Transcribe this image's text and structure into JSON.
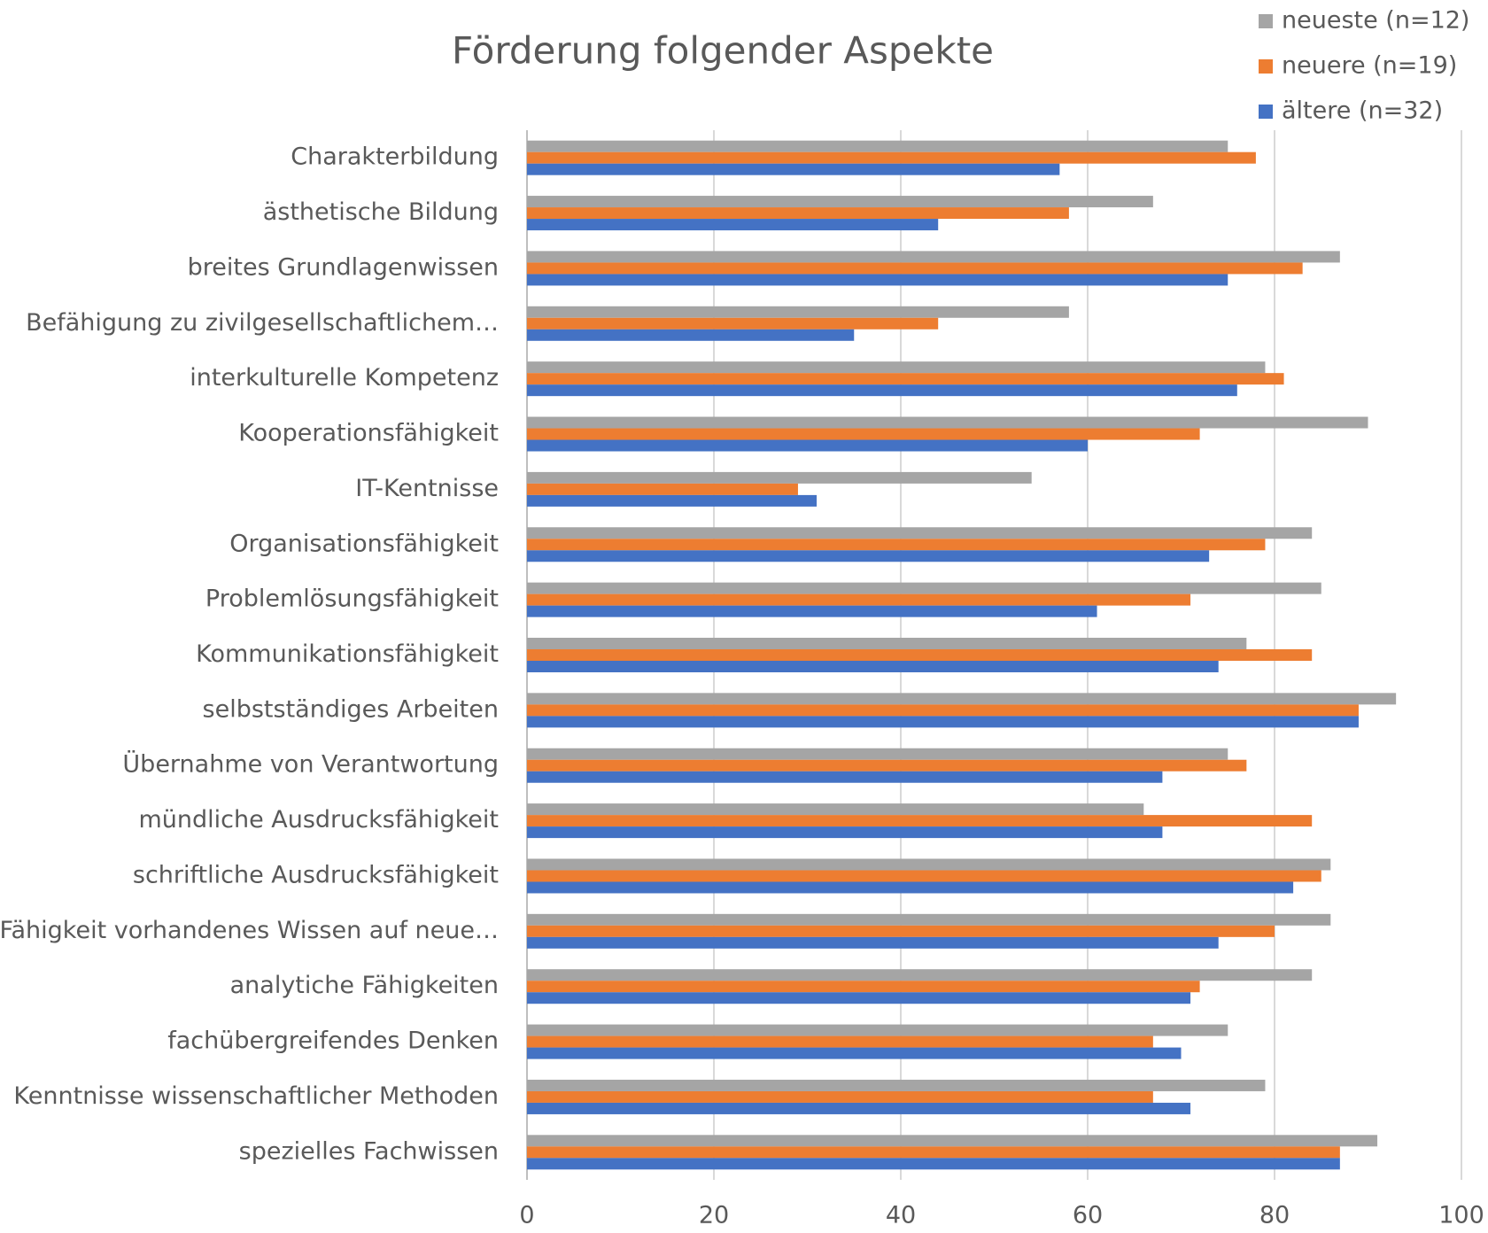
{
  "chart_data": {
    "type": "bar",
    "orientation": "horizontal",
    "title": "Förderung folgender Aspekte",
    "categories": [
      "Charakterbildung",
      "ästhetische Bildung",
      "breites Grundlagenwissen",
      "Befähigung zu zivilgesellschaftlichem…",
      "interkulturelle Kompetenz",
      "Kooperationsfähigkeit",
      "IT-Kentnisse",
      "Organisationsfähigkeit",
      "Problemlösungsfähigkeit",
      "Kommunikationsfähigkeit",
      "selbstständiges Arbeiten",
      "Übernahme von Verantwortung",
      "mündliche Ausdrucksfähigkeit",
      "schriftliche Ausdrucksfähigkeit",
      "Fähigkeit vorhandenes Wissen auf neue…",
      "analytiche Fähigkeiten",
      "fachübergreifendes Denken",
      "Kenntnisse wissenschaftlicher Methoden",
      "spezielles Fachwissen"
    ],
    "series": [
      {
        "name": "neueste (n=12)",
        "color": "#a5a5a5",
        "values": [
          75,
          67,
          87,
          58,
          79,
          90,
          54,
          84,
          85,
          77,
          93,
          75,
          66,
          86,
          86,
          84,
          75,
          79,
          91
        ]
      },
      {
        "name": "neuere (n=19)",
        "color": "#ed7d31",
        "values": [
          78,
          58,
          83,
          44,
          81,
          72,
          29,
          79,
          71,
          84,
          89,
          77,
          84,
          85,
          80,
          72,
          67,
          67,
          87
        ]
      },
      {
        "name": "ältere (n=32)",
        "color": "#4472c4",
        "values": [
          57,
          44,
          75,
          35,
          76,
          60,
          31,
          73,
          61,
          74,
          89,
          68,
          68,
          82,
          74,
          71,
          70,
          71,
          87
        ]
      }
    ],
    "xlim": [
      0,
      100
    ],
    "xticks": [
      0,
      20,
      40,
      60,
      80,
      100
    ],
    "grid": true,
    "legend": "top-right"
  }
}
